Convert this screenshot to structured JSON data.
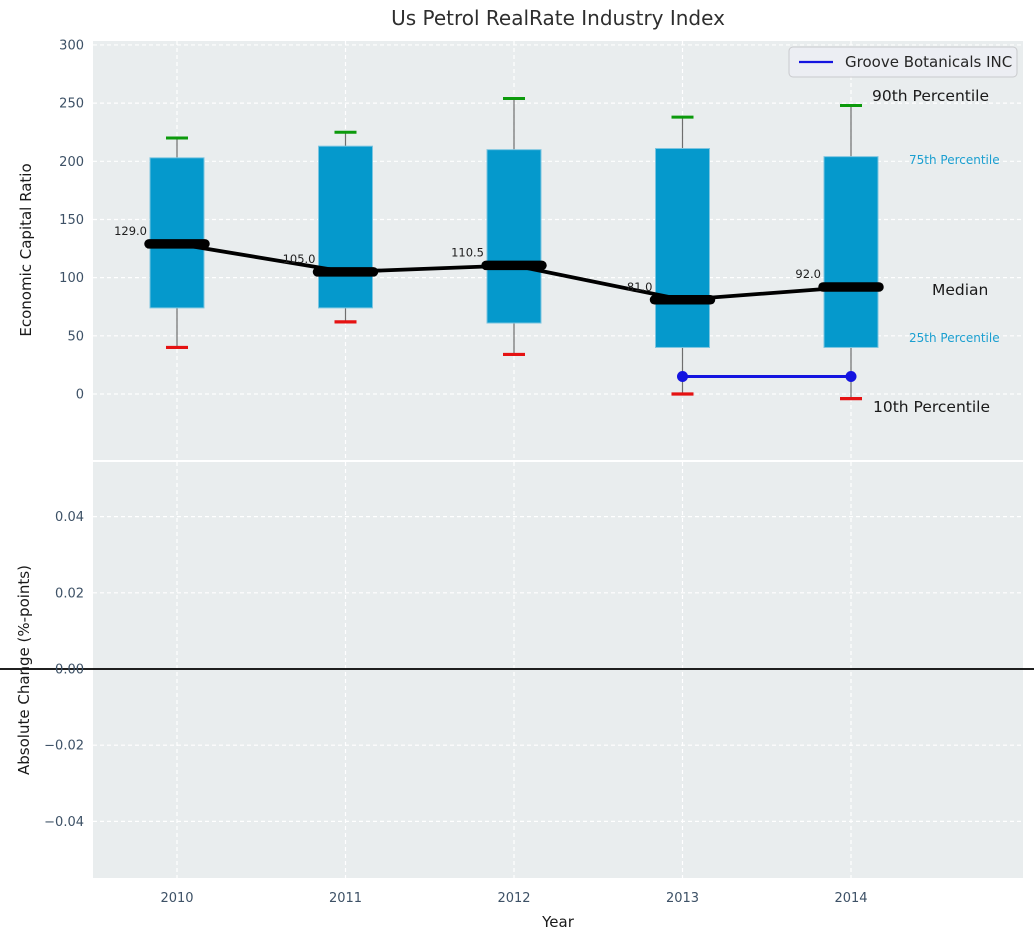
{
  "title": "Us Petrol RealRate Industry Index",
  "colors": {
    "plot_bg": "#e9edee",
    "grid": "#ffffff",
    "tick_label": "#3d5166",
    "bar": "#0599cc",
    "bar_edge": "#7cc5e0",
    "whisker": "#6e6e6e",
    "p90_cap": "#0c9a0c",
    "p10_cap": "#e51212",
    "median": "#000000",
    "company_line": "#1414e0",
    "text": "#1a1a1a",
    "percentile_label_cyan": "#1b9fd0",
    "legend_bg": "#ecedf3",
    "legend_border": "#c9cacd"
  },
  "legend": {
    "label": "Groove Botanicals INC",
    "position": "upper right"
  },
  "chart_data": [
    {
      "panel": "top",
      "type": "bar",
      "title": "Us Petrol RealRate Industry Index",
      "ylabel": "Economic Capital Ratio",
      "xlabel": "",
      "categories": [
        "2010",
        "2011",
        "2012",
        "2013",
        "2014"
      ],
      "yticks": [
        0,
        50,
        100,
        150,
        200,
        250,
        300
      ],
      "ytick_labels": [
        "0",
        "50",
        "100",
        "150",
        "200",
        "250",
        "300"
      ],
      "ylim": [
        -57,
        303
      ],
      "grid": true,
      "series": [
        {
          "name": "90th Percentile",
          "values": [
            220,
            225,
            254,
            238,
            248
          ]
        },
        {
          "name": "75th Percentile",
          "values": [
            203,
            213,
            210,
            211,
            204
          ]
        },
        {
          "name": "Median",
          "values": [
            129.0,
            105.0,
            110.5,
            81.0,
            92.0
          ]
        },
        {
          "name": "25th Percentile",
          "values": [
            74,
            74,
            61,
            40,
            40
          ]
        },
        {
          "name": "10th Percentile",
          "values": [
            40,
            62,
            34,
            0,
            -4
          ]
        }
      ],
      "median_point_labels": [
        "129.0",
        "105.0",
        "110.5",
        "81.0",
        "92.0"
      ],
      "overlay_series": {
        "name": "Groove Botanicals INC",
        "categories": [
          "2013",
          "2014"
        ],
        "values": [
          15,
          15
        ]
      },
      "right_axis_labels": [
        {
          "text": "90th Percentile",
          "style": "black"
        },
        {
          "text": "75th Percentile",
          "style": "cyan"
        },
        {
          "text": "Median",
          "style": "black"
        },
        {
          "text": "25th Percentile",
          "style": "cyan"
        },
        {
          "text": "10th Percentile",
          "style": "black"
        }
      ]
    },
    {
      "panel": "bottom",
      "type": "line",
      "title": "",
      "ylabel": "Absolute Change (%-points)",
      "xlabel": "Year",
      "categories": [
        "2010",
        "2011",
        "2012",
        "2013",
        "2014"
      ],
      "yticks": [
        0.04,
        0.02,
        0.0,
        -0.02,
        -0.04
      ],
      "ytick_labels": [
        "0.04",
        "0.02",
        "0.00",
        "−0.02",
        "−0.04"
      ],
      "ylim": [
        -0.055,
        0.054
      ],
      "grid": true,
      "zero_line": 0.0,
      "series": []
    }
  ]
}
